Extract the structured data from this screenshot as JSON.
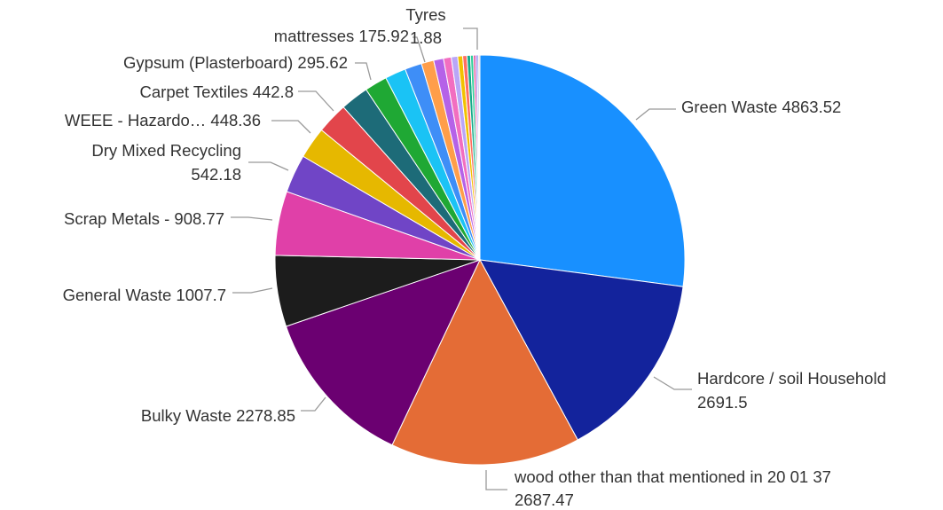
{
  "chart_data": {
    "type": "pie",
    "start_angle_deg": 0,
    "direction": "clockwise",
    "slices": [
      {
        "label": "Green Waste",
        "value": 4863.52,
        "color": "#1890ff"
      },
      {
        "label": "Hardcore / soil Household",
        "value": 2691.5,
        "color": "#13239c"
      },
      {
        "label": "wood other than that mentioned in 20 01 37",
        "value": 2687.47,
        "color": "#e46c36"
      },
      {
        "label": "Bulky Waste",
        "value": 2278.85,
        "color": "#6b0071"
      },
      {
        "label": "General Waste",
        "value": 1007.7,
        "color": "#1c1c1c"
      },
      {
        "label": "Scrap Metals -",
        "value": 908.77,
        "color": "#e040a8"
      },
      {
        "label": "Dry Mixed Recycling",
        "value": 542.18,
        "color": "#7045c6"
      },
      {
        "label": "WEEE - Hazardo…",
        "value": 448.36,
        "color": "#e6b800"
      },
      {
        "label": "Carpet Textiles",
        "value": 442.8,
        "color": "#e2454b"
      },
      {
        "label": "",
        "value": 400,
        "color": "#1d6b78"
      },
      {
        "label": "",
        "value": 320,
        "color": "#1fa834"
      },
      {
        "label": "Gypsum (Plasterboard)",
        "value": 295.62,
        "color": "#1ac3f5"
      },
      {
        "label": "",
        "value": 240,
        "color": "#3e8ef7"
      },
      {
        "label": "mattresses",
        "value": 175.92,
        "color": "#ff9e4a"
      },
      {
        "label": "",
        "value": 140,
        "color": "#b562e8"
      },
      {
        "label": "",
        "value": 110,
        "color": "#f26ec0"
      },
      {
        "label": "",
        "value": 90,
        "color": "#b9a6f7"
      },
      {
        "label": "",
        "value": 70,
        "color": "#f2c200"
      },
      {
        "label": "",
        "value": 60,
        "color": "#ff6e62"
      },
      {
        "label": "",
        "value": 50,
        "color": "#16aa8a"
      },
      {
        "label": "",
        "value": 40,
        "color": "#2ecf9b"
      },
      {
        "label": "",
        "value": 30,
        "color": "#e03a8a"
      },
      {
        "label": "",
        "value": 25,
        "color": "#8a5cf0"
      },
      {
        "label": "",
        "value": 20,
        "color": "#3a67d6"
      },
      {
        "label": "",
        "value": 15,
        "color": "#c8302a"
      },
      {
        "label": "Tyres",
        "value": 1.88,
        "color": "#a32a8b"
      }
    ],
    "labels": [
      {
        "lines": [
          "Green Waste 4863.52"
        ]
      },
      {
        "lines": [
          "Hardcore / soil Household",
          "2691.5"
        ]
      },
      {
        "lines": [
          "wood other than that mentioned in 20 01 37",
          "2687.47"
        ]
      },
      {
        "lines": [
          "Bulky Waste 2278.85"
        ]
      },
      {
        "lines": [
          "General Waste 1007.7"
        ]
      },
      {
        "lines": [
          "Scrap Metals - 908.77"
        ]
      },
      {
        "lines": [
          "Dry Mixed Recycling",
          "542.18"
        ]
      },
      {
        "lines": [
          "WEEE - Hazardo… 448.36"
        ]
      },
      {
        "lines": [
          "Carpet Textiles 442.8"
        ]
      },
      {
        "lines": [
          "Gypsum (Plasterboard) 295.62"
        ]
      },
      {
        "lines": [
          "mattresses 175.92"
        ]
      },
      {
        "lines": [
          "Tyres",
          "1.88"
        ]
      }
    ],
    "title": "",
    "legend": "none"
  }
}
